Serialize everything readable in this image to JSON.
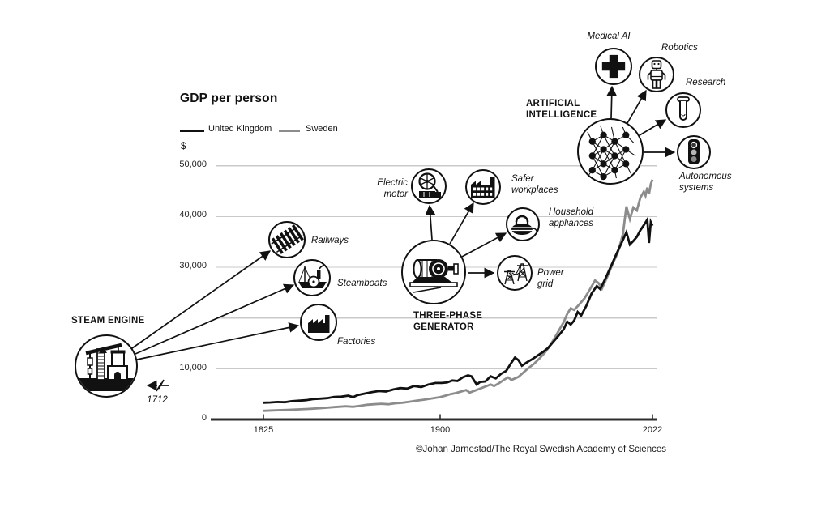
{
  "header": {
    "title": "GDP per person",
    "currency": "$"
  },
  "legend": {
    "items": [
      {
        "label": "United Kingdom",
        "color": "#111111"
      },
      {
        "label": "Sweden",
        "color": "#8c8c8c"
      }
    ]
  },
  "axes": {
    "y_labels": [
      "50,000",
      "40,000",
      "30,000",
      "10,000",
      "0"
    ],
    "x_labels": [
      "1825",
      "1900",
      "2022"
    ]
  },
  "annotations": {
    "steam_engine": "STEAM ENGINE",
    "year_1712": "1712",
    "railways": "Railways",
    "steamboats": "Steamboats",
    "factories": "Factories",
    "three_phase_generator": "THREE-PHASE GENERATOR",
    "electric_motor": "Electric motor",
    "safer_workplaces": "Safer workplaces",
    "household_appliances": "Household appliances",
    "power_grid": "Power grid",
    "artificial_intelligence": "ARTIFICIAL INTELLIGENCE",
    "medical_ai": "Medical AI",
    "robotics": "Robotics",
    "research": "Research",
    "autonomous_systems": "Autonomous systems"
  },
  "credit": "©Johan Jarnestad/The Royal Swedish Academy of Sciences",
  "chart_data": {
    "type": "line",
    "title": "GDP per person",
    "ylabel": "$",
    "xlim": [
      1825,
      2022
    ],
    "ylim": [
      0,
      50000
    ],
    "x_ticks": [
      1825,
      1900,
      2022
    ],
    "y_gridlines": [
      10000,
      20000,
      30000,
      40000,
      50000
    ],
    "y_tick_labels": [
      "0",
      "10,000",
      "30,000",
      "40,000",
      "50,000"
    ],
    "grid": true,
    "legend_position": "top-left",
    "series": [
      {
        "name": "Sweden",
        "color": "#8c8c8c",
        "points": [
          [
            1825,
            1700
          ],
          [
            1830,
            1800
          ],
          [
            1835,
            1900
          ],
          [
            1840,
            2000
          ],
          [
            1845,
            2100
          ],
          [
            1850,
            2250
          ],
          [
            1855,
            2450
          ],
          [
            1860,
            2600
          ],
          [
            1863,
            2500
          ],
          [
            1866,
            2700
          ],
          [
            1869,
            2900
          ],
          [
            1872,
            3000
          ],
          [
            1875,
            3100
          ],
          [
            1878,
            3000
          ],
          [
            1881,
            3200
          ],
          [
            1884,
            3300
          ],
          [
            1887,
            3500
          ],
          [
            1890,
            3700
          ],
          [
            1893,
            3900
          ],
          [
            1896,
            4100
          ],
          [
            1900,
            4400
          ],
          [
            1903,
            4700
          ],
          [
            1906,
            5000
          ],
          [
            1909,
            5200
          ],
          [
            1912,
            5500
          ],
          [
            1915,
            5800
          ],
          [
            1917,
            5300
          ],
          [
            1920,
            5700
          ],
          [
            1923,
            6100
          ],
          [
            1926,
            6500
          ],
          [
            1929,
            6900
          ],
          [
            1931,
            6600
          ],
          [
            1934,
            7200
          ],
          [
            1937,
            7900
          ],
          [
            1939,
            8300
          ],
          [
            1941,
            7800
          ],
          [
            1943,
            8100
          ],
          [
            1945,
            8400
          ],
          [
            1948,
            9300
          ],
          [
            1951,
            10200
          ],
          [
            1954,
            11000
          ],
          [
            1957,
            12000
          ],
          [
            1960,
            13100
          ],
          [
            1963,
            14500
          ],
          [
            1966,
            16200
          ],
          [
            1969,
            18000
          ],
          [
            1971,
            19200
          ],
          [
            1973,
            20800
          ],
          [
            1975,
            21900
          ],
          [
            1977,
            21600
          ],
          [
            1980,
            22700
          ],
          [
            1983,
            23900
          ],
          [
            1986,
            25600
          ],
          [
            1989,
            27400
          ],
          [
            1991,
            26900
          ],
          [
            1993,
            25800
          ],
          [
            1996,
            28100
          ],
          [
            1999,
            30600
          ],
          [
            2002,
            32800
          ],
          [
            2005,
            36500
          ],
          [
            2007,
            42000
          ],
          [
            2009,
            39500
          ],
          [
            2011,
            41800
          ],
          [
            2013,
            41200
          ],
          [
            2015,
            43700
          ],
          [
            2017,
            44900
          ],
          [
            2018,
            44100
          ],
          [
            2019,
            45700
          ],
          [
            2020,
            44400
          ],
          [
            2021,
            46400
          ],
          [
            2022,
            47300
          ]
        ]
      },
      {
        "name": "United Kingdom",
        "color": "#111111",
        "points": [
          [
            1825,
            3300
          ],
          [
            1828,
            3350
          ],
          [
            1831,
            3450
          ],
          [
            1834,
            3400
          ],
          [
            1837,
            3600
          ],
          [
            1840,
            3700
          ],
          [
            1843,
            3800
          ],
          [
            1846,
            4000
          ],
          [
            1849,
            4100
          ],
          [
            1852,
            4200
          ],
          [
            1855,
            4450
          ],
          [
            1858,
            4500
          ],
          [
            1861,
            4700
          ],
          [
            1863,
            4400
          ],
          [
            1865,
            4800
          ],
          [
            1868,
            5100
          ],
          [
            1871,
            5400
          ],
          [
            1874,
            5600
          ],
          [
            1877,
            5500
          ],
          [
            1880,
            5900
          ],
          [
            1883,
            6200
          ],
          [
            1886,
            6100
          ],
          [
            1889,
            6600
          ],
          [
            1892,
            6400
          ],
          [
            1895,
            6900
          ],
          [
            1898,
            7200
          ],
          [
            1901,
            7200
          ],
          [
            1904,
            7300
          ],
          [
            1907,
            7700
          ],
          [
            1910,
            7600
          ],
          [
            1913,
            8300
          ],
          [
            1916,
            8700
          ],
          [
            1918,
            8500
          ],
          [
            1921,
            6900
          ],
          [
            1923,
            7400
          ],
          [
            1926,
            7500
          ],
          [
            1929,
            8500
          ],
          [
            1932,
            8100
          ],
          [
            1935,
            9000
          ],
          [
            1938,
            9600
          ],
          [
            1941,
            11200
          ],
          [
            1943,
            12200
          ],
          [
            1945,
            11700
          ],
          [
            1947,
            10600
          ],
          [
            1950,
            11300
          ],
          [
            1953,
            11900
          ],
          [
            1956,
            12600
          ],
          [
            1959,
            13300
          ],
          [
            1962,
            14100
          ],
          [
            1965,
            15300
          ],
          [
            1968,
            16500
          ],
          [
            1971,
            17800
          ],
          [
            1973,
            19300
          ],
          [
            1975,
            18700
          ],
          [
            1977,
            19500
          ],
          [
            1979,
            21200
          ],
          [
            1981,
            20500
          ],
          [
            1984,
            22400
          ],
          [
            1987,
            24800
          ],
          [
            1990,
            26300
          ],
          [
            1992,
            25700
          ],
          [
            1995,
            27800
          ],
          [
            1998,
            30100
          ],
          [
            2001,
            32400
          ],
          [
            2004,
            34600
          ],
          [
            2007,
            36900
          ],
          [
            2009,
            34500
          ],
          [
            2011,
            35200
          ],
          [
            2013,
            36000
          ],
          [
            2015,
            37300
          ],
          [
            2017,
            38300
          ],
          [
            2019,
            39400
          ],
          [
            2020,
            34800
          ],
          [
            2021,
            38900
          ],
          [
            2022,
            38200
          ]
        ]
      }
    ]
  }
}
